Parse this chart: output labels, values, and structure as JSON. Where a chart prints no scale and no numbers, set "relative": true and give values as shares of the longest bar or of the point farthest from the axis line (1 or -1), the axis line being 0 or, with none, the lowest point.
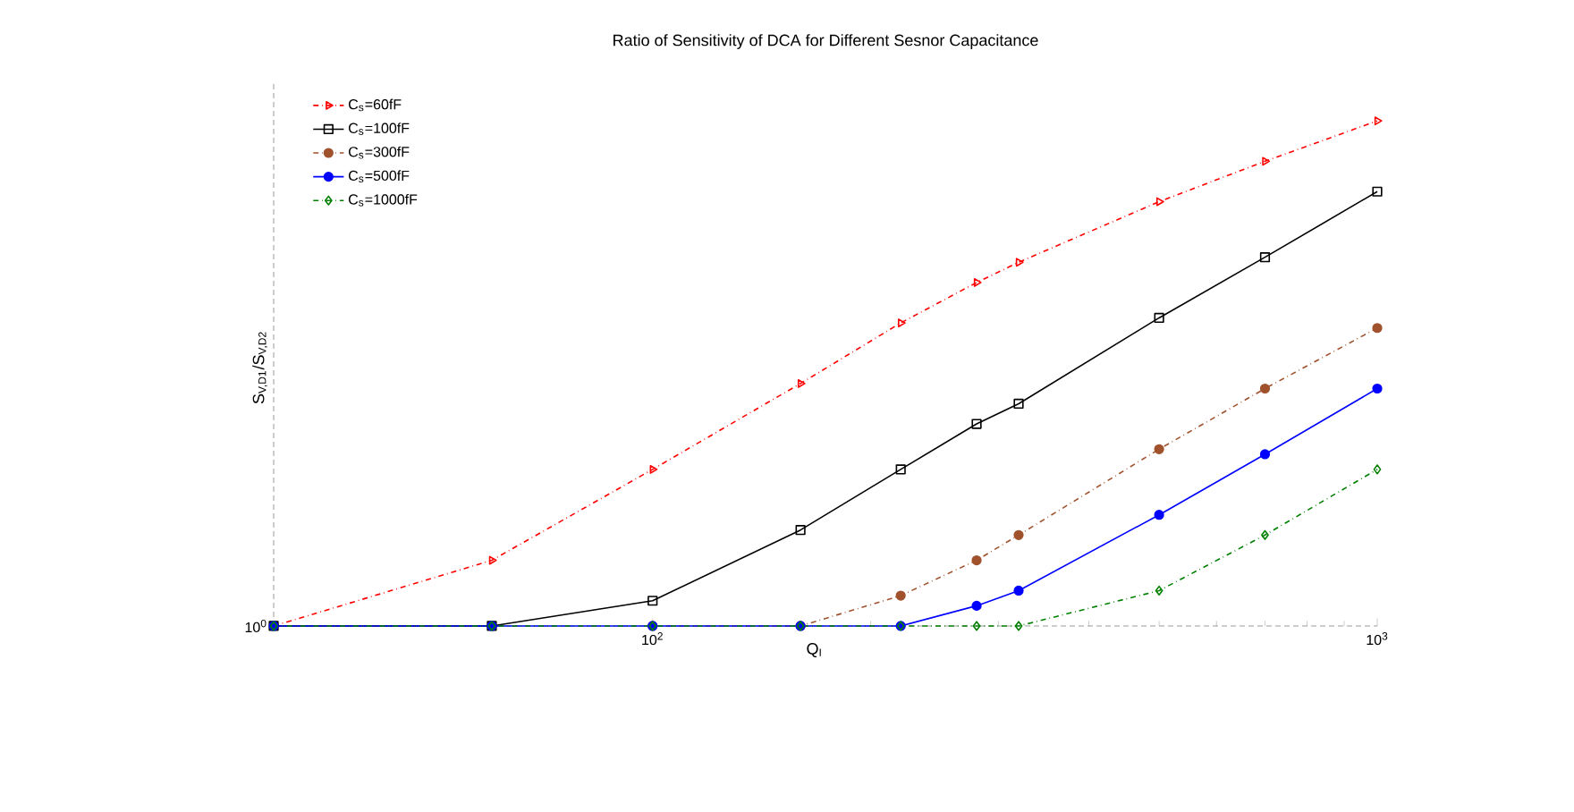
{
  "chart_data": {
    "type": "line",
    "title": "Ratio of Sensitivity of DCA for Different Sesnor Capacitance",
    "xlabel": "Q$_{I}$",
    "ylabel": "S$_{V,D1}$/S$_{V,D2}$",
    "x": [
      30,
      60,
      100,
      160,
      220,
      280,
      320,
      500,
      700,
      1000
    ],
    "xlim": [
      30,
      1000
    ],
    "xticks": [
      {
        "value": 100,
        "label": "10$^{2}$"
      },
      {
        "value": 1000,
        "label": "10$^{3}$"
      }
    ],
    "log": "x",
    "relative": true,
    "legend": "top left",
    "annotations": [
      "10$^{0}$"
    ],
    "series": [
      {
        "name": "C$_{s}$=60fF",
        "color": "#ff0000",
        "marker": "triangle",
        "line_style": "dashed",
        "values": [
          0,
          0.13,
          0.31,
          0.48,
          0.6,
          0.68,
          0.72,
          0.84,
          0.92,
          1
        ]
      },
      {
        "name": "C$_{s}$=100fF",
        "color": "#000000",
        "marker": "square",
        "line_style": "solid",
        "values": [
          0,
          0,
          0.05,
          0.19,
          0.31,
          0.4,
          0.44,
          0.61,
          0.73,
          0.86
        ]
      },
      {
        "name": "C$_{s}$=300fF",
        "color": "#a0522d",
        "marker": "circle",
        "line_style": "dashed",
        "values": [
          null,
          null,
          0,
          0,
          0.06,
          0.13,
          0.18,
          0.35,
          0.47,
          0.59
        ]
      },
      {
        "name": "C$_{s}$=500fF",
        "color": "#0000ff",
        "marker": "circle",
        "line_style": "solid",
        "values": [
          0,
          0,
          0,
          0,
          0,
          0.04,
          0.07,
          0.22,
          0.34,
          0.47
        ]
      },
      {
        "name": "C$_{s}$=1000fF",
        "color": "#008000",
        "marker": "diamond",
        "line_style": "dashed",
        "values": [
          0,
          0,
          0,
          0,
          0,
          0,
          0,
          0.07,
          0.18,
          0.31
        ]
      }
    ]
  }
}
